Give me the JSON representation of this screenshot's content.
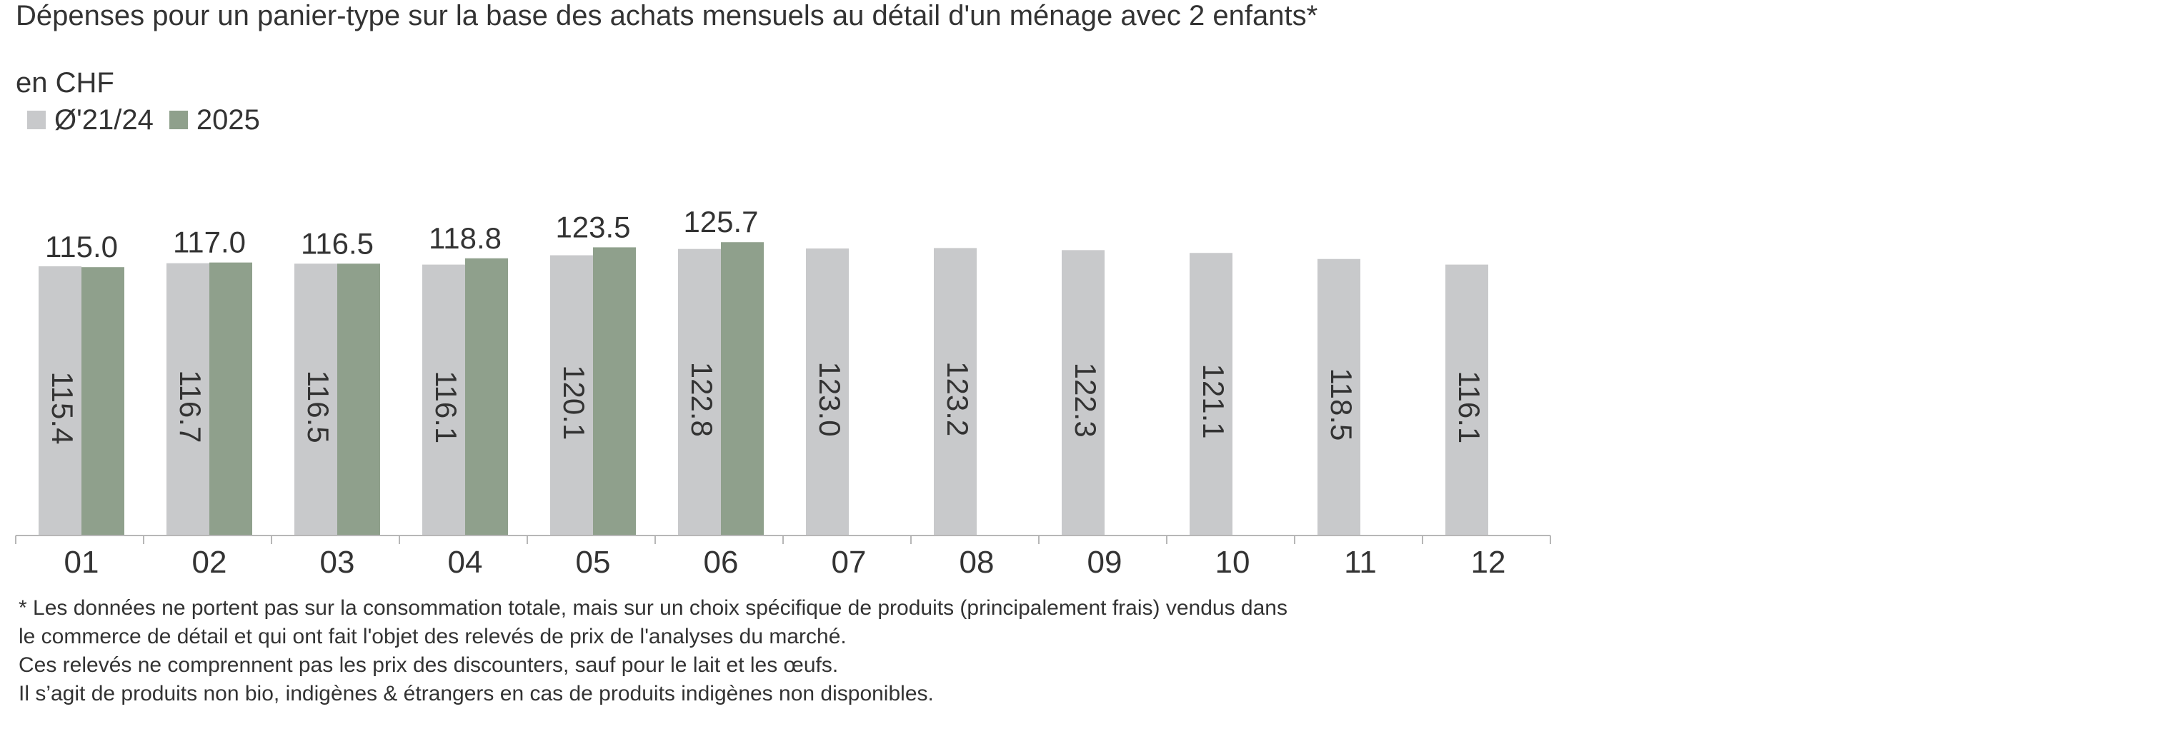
{
  "title": "Dépenses pour un panier-type sur la base des achats mensuels au détail d'un ménage avec 2 enfants*",
  "unit_label": "en CHF",
  "footnote": [
    "* Les données ne portent pas sur la consommation totale, mais sur un choix spécifique de produits (principalement frais) vendus dans",
    "le commerce de détail et qui ont fait l'objet des relevés de prix de l'analyses du marché.",
    "Ces relevés ne comprennent pas les prix des discounters, sauf pour le lait et les œufs.",
    "Il s’agit de produits non bio, indigènes & étrangers en cas de produits indigènes non disponibles."
  ],
  "chart_data": {
    "type": "bar",
    "title": "Dépenses pour un panier-type sur la base des achats mensuels au détail d'un ménage avec 2 enfants*",
    "ylabel": "en CHF",
    "xlabel": "",
    "categories": [
      "01",
      "02",
      "03",
      "04",
      "05",
      "06",
      "07",
      "08",
      "09",
      "10",
      "11",
      "12"
    ],
    "series": [
      {
        "name": "Ø'21/24",
        "color": "#c8c9cb",
        "values": [
          115.4,
          116.7,
          116.5,
          116.1,
          120.1,
          122.8,
          123.0,
          123.2,
          122.3,
          121.1,
          118.5,
          116.1
        ]
      },
      {
        "name": "2025",
        "color": "#8fa08c",
        "values": [
          115.0,
          117.0,
          116.5,
          118.8,
          123.5,
          125.7,
          null,
          null,
          null,
          null,
          null,
          null
        ]
      }
    ],
    "ylim": [
      0,
      135
    ],
    "grid": false,
    "legend": "top-left",
    "data_labels": {
      "Ø'21/24": "inside-rotated",
      "2025": "above"
    }
  }
}
